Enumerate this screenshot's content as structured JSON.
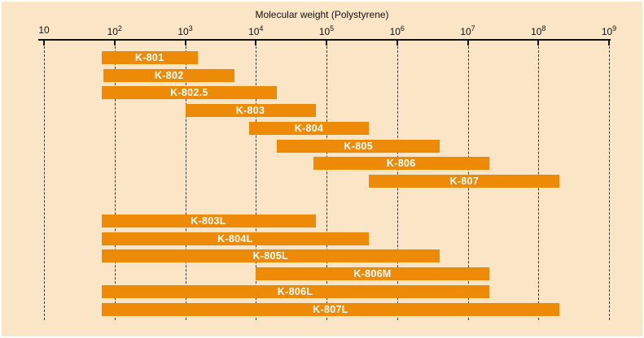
{
  "colors": {
    "background": "#FAE5C6",
    "bar": "#ED8B09",
    "bar_text": "#FFFFFF",
    "axis": "#111111"
  },
  "chart_data": {
    "type": "bar",
    "orientation": "horizontal-range",
    "title": "Molecular weight (Polystyrene)",
    "x_scale": "log10",
    "x_min": 10,
    "x_max": 1000000000,
    "grid": "dashed-vertical-per-decade",
    "legend": "none",
    "x_ticks": [
      {
        "text": "10",
        "sup": "",
        "exp": 1
      },
      {
        "text": "10",
        "sup": "2",
        "exp": 2
      },
      {
        "text": "10",
        "sup": "3",
        "exp": 3
      },
      {
        "text": "10",
        "sup": "4",
        "exp": 4
      },
      {
        "text": "10",
        "sup": "5",
        "exp": 5
      },
      {
        "text": "10",
        "sup": "6",
        "exp": 6
      },
      {
        "text": "10",
        "sup": "7",
        "exp": 7
      },
      {
        "text": "10",
        "sup": "8",
        "exp": 8
      },
      {
        "text": "10",
        "sup": "9",
        "exp": 9
      }
    ],
    "groups": [
      {
        "bars": [
          {
            "label": "K-801",
            "min": 65,
            "max": 1500
          },
          {
            "label": "K-802",
            "min": 70,
            "max": 5000
          },
          {
            "label": "K-802.5",
            "min": 65,
            "max": 20000
          },
          {
            "label": "K-803",
            "min": 1000,
            "max": 70000
          },
          {
            "label": "K-804",
            "min": 8000,
            "max": 400000
          },
          {
            "label": "K-805",
            "min": 20000,
            "max": 4000000
          },
          {
            "label": "K-806",
            "min": 65000,
            "max": 20000000
          },
          {
            "label": "K-807",
            "min": 400000,
            "max": 200000000
          }
        ]
      },
      {
        "bars": [
          {
            "label": "K-803L",
            "min": 65,
            "max": 70000
          },
          {
            "label": "K-804L",
            "min": 65,
            "max": 400000
          },
          {
            "label": "K-805L",
            "min": 65,
            "max": 4000000
          },
          {
            "label": "K-806M",
            "min": 10000,
            "max": 20000000
          },
          {
            "label": "K-806L",
            "min": 65,
            "max": 20000000
          },
          {
            "label": "K-807L",
            "min": 65,
            "max": 200000000
          }
        ]
      }
    ]
  }
}
